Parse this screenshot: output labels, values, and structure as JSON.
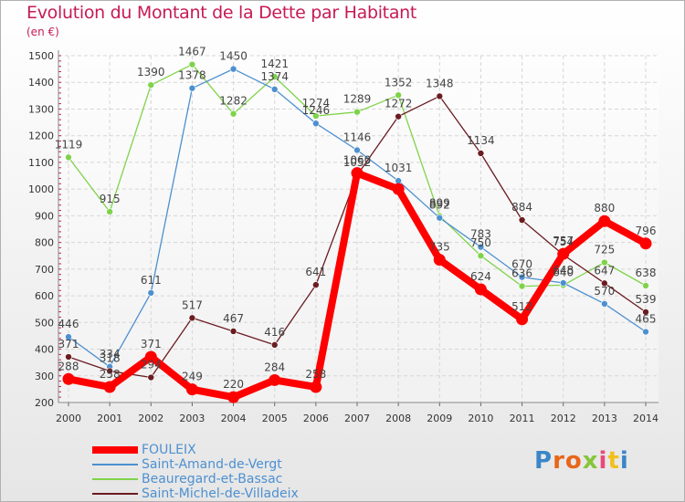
{
  "chart_data": {
    "type": "line",
    "title": "Evolution du Montant de la Dette par Habitant",
    "subtitle": "(en €)",
    "xlabel": "",
    "ylabel": "",
    "x": [
      "2000",
      "2001",
      "2002",
      "2003",
      "2004",
      "2005",
      "2006",
      "2007",
      "2008",
      "2009",
      "2010",
      "2011",
      "2012",
      "2013",
      "2014"
    ],
    "ylim": [
      200,
      1500
    ],
    "yticks": [
      200,
      300,
      400,
      500,
      600,
      700,
      800,
      900,
      1000,
      1100,
      1200,
      1300,
      1400,
      1500
    ],
    "grid": true,
    "legend_position": "bottom-left",
    "series": [
      {
        "name": "FOULEIX",
        "color": "#ff0000",
        "values": [
          288,
          258,
          371,
          249,
          220,
          284,
          258,
          1060,
          1000,
          735,
          624,
          512,
          757,
          880,
          796
        ],
        "labels": [
          "288",
          "258",
          "371",
          "249",
          "220",
          "284",
          "258",
          "1060",
          "",
          "735",
          "624",
          "512",
          "757",
          "880",
          "796"
        ]
      },
      {
        "name": "Saint-Amand-de-Vergt",
        "color": "#4d90d0",
        "values": [
          446,
          334,
          611,
          1378,
          1450,
          1374,
          1246,
          1146,
          1031,
          892,
          783,
          670,
          648,
          570,
          465
        ],
        "labels": [
          "446",
          "334",
          "611",
          "1378",
          "1450",
          "1374",
          "1246",
          "1146",
          "1031",
          "892",
          "783",
          "670",
          "648",
          "570",
          "465"
        ]
      },
      {
        "name": "Beauregard-et-Bassac",
        "color": "#7fd34a",
        "values": [
          1119,
          915,
          1390,
          1467,
          1282,
          1421,
          1274,
          1289,
          1352,
          899,
          750,
          636,
          640,
          725,
          638
        ],
        "labels": [
          "1119",
          "915",
          "1390",
          "1467",
          "1282",
          "1421",
          "1274",
          "1289",
          "1352",
          "899",
          "750",
          "636",
          "640",
          "725",
          "638"
        ]
      },
      {
        "name": "Saint-Michel-de-Villadeix",
        "color": "#6b1c20",
        "values": [
          371,
          318,
          294,
          517,
          467,
          416,
          641,
          1052,
          1272,
          1348,
          1134,
          884,
          754,
          647,
          539
        ],
        "labels": [
          "371",
          "318",
          "294",
          "517",
          "467",
          "416",
          "641",
          "1052",
          "1272",
          "1348",
          "1134",
          "884",
          "754",
          "647",
          "539"
        ]
      }
    ]
  },
  "logo": {
    "text": "Proxiti",
    "colors": [
      "#3b86c8",
      "#e8661a",
      "#e8661a",
      "#88c53a",
      "#e84a78",
      "#f0c020",
      "#3b86c8"
    ]
  }
}
